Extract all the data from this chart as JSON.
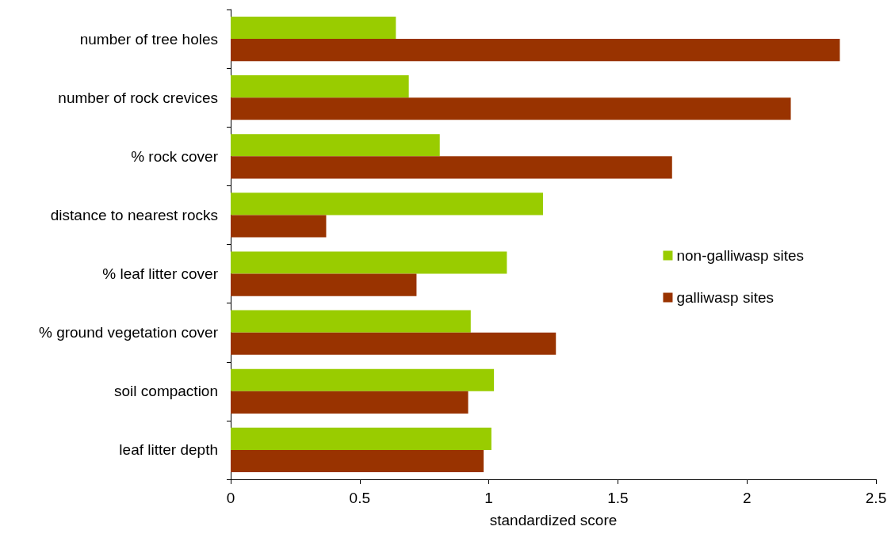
{
  "chart_data": {
    "type": "bar",
    "orientation": "horizontal",
    "xlabel": "standardized score",
    "categories": [
      "number of tree holes",
      "number of rock crevices",
      "% rock cover",
      "distance to nearest rocks",
      "% leaf litter cover",
      "% ground vegetation cover",
      "soil compaction",
      "leaf litter depth"
    ],
    "series": [
      {
        "name": "non-galliwasp sites",
        "color": "#99cc00",
        "values": [
          0.64,
          0.69,
          0.81,
          1.21,
          1.07,
          0.93,
          1.02,
          1.01
        ]
      },
      {
        "name": "galliwasp sites",
        "color": "#993300",
        "values": [
          2.36,
          2.17,
          1.71,
          0.37,
          0.72,
          1.26,
          0.92,
          0.98
        ]
      }
    ],
    "xlim": [
      0,
      2.5
    ],
    "xticks": [
      0,
      0.5,
      1,
      1.5,
      2,
      2.5
    ],
    "grid": false,
    "legend": "right"
  }
}
